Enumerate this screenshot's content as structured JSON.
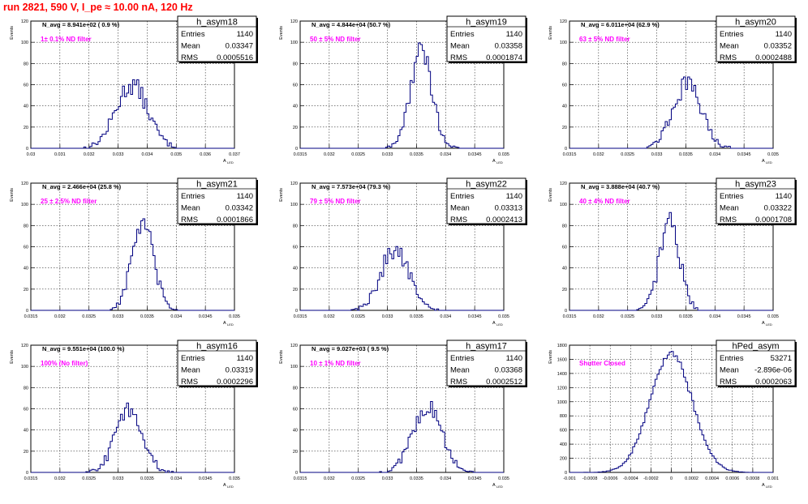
{
  "page": {
    "title": "run 2821,   590 V, I_pe ≈ 10.00 nA, 120 Hz"
  },
  "colors": {
    "title": "#ff0000",
    "histogram": "#000080",
    "annotation": "#ff00ff"
  },
  "chart_data": [
    {
      "type": "bar",
      "name": "h_asym18",
      "ylabel": "Events",
      "xlabel": "A",
      "xlim": [
        0.03,
        0.037
      ],
      "ylim": [
        0,
        120
      ],
      "xticks": [
        "0.03",
        "0.031",
        "0.032",
        "0.033",
        "0.034",
        "0.035",
        "0.036",
        "0.037"
      ],
      "yticks": [
        "0",
        "20",
        "40",
        "60",
        "80",
        "100",
        "120"
      ],
      "grid": true,
      "legend": "top-right",
      "stats": {
        "entries_label": "Entries",
        "entries": "1140",
        "mean_label": "Mean",
        "mean": "0.03347",
        "rms_label": "RMS",
        "rms": "0.0005516"
      },
      "navg": "N_avg = 8.941e+02 ( 0.9 %)",
      "annotation": "1± 0.1% ND filter",
      "hist_mean": 0.03347,
      "hist_sigma": 0.00055,
      "peak": 60,
      "peak_count": 65
    },
    {
      "type": "bar",
      "name": "h_asym19",
      "ylabel": "Events",
      "xlabel": "A",
      "xlim": [
        0.0315,
        0.035
      ],
      "ylim": [
        0,
        120
      ],
      "xticks": [
        "0.0315",
        "0.032",
        "0.0325",
        "0.033",
        "0.0335",
        "0.034",
        "0.0345",
        "0.035"
      ],
      "yticks": [
        "0",
        "20",
        "40",
        "60",
        "80",
        "100",
        "120"
      ],
      "grid": true,
      "legend": "top-right",
      "stats": {
        "entries_label": "Entries",
        "entries": "1140",
        "mean_label": "Mean",
        "mean": "0.03358",
        "rms_label": "RMS",
        "rms": "0.0001874"
      },
      "navg": "N_avg = 4.844e+04 (50.7 %)",
      "annotation": "50 ± 5% ND filter",
      "hist_mean": 0.03358,
      "hist_sigma": 0.000187,
      "peak": 92,
      "peak_count": 96
    },
    {
      "type": "bar",
      "name": "h_asym20",
      "ylabel": "Events",
      "xlabel": "A",
      "xlim": [
        0.0315,
        0.035
      ],
      "ylim": [
        0,
        120
      ],
      "xticks": [
        "0.0315",
        "0.032",
        "0.0325",
        "0.033",
        "0.0335",
        "0.034",
        "0.0345",
        "0.035"
      ],
      "yticks": [
        "0",
        "20",
        "40",
        "60",
        "80",
        "100",
        "120"
      ],
      "grid": true,
      "legend": "top-right",
      "stats": {
        "entries_label": "Entries",
        "entries": "1140",
        "mean_label": "Mean",
        "mean": "0.03352",
        "rms_label": "RMS",
        "rms": "0.0002488"
      },
      "navg": "N_avg = 6.011e+04 (62.9 %)",
      "annotation": "63 ± 5% ND filter",
      "hist_mean": 0.03352,
      "hist_sigma": 0.000249,
      "peak": 60,
      "peak_count": 68
    },
    {
      "type": "bar",
      "name": "h_asym21",
      "ylabel": "Events",
      "xlabel": "A",
      "xlim": [
        0.0315,
        0.035
      ],
      "ylim": [
        0,
        120
      ],
      "xticks": [
        "0.0315",
        "0.032",
        "0.0325",
        "0.033",
        "0.0335",
        "0.034",
        "0.0345",
        "0.035"
      ],
      "yticks": [
        "0",
        "20",
        "40",
        "60",
        "80",
        "100",
        "120"
      ],
      "grid": true,
      "legend": "top-right",
      "stats": {
        "entries_label": "Entries",
        "entries": "1140",
        "mean_label": "Mean",
        "mean": "0.03342",
        "rms_label": "RMS",
        "rms": "0.0001866"
      },
      "navg": "N_avg = 2.466e+04 (25.8 %)",
      "annotation": "25 ± 2.5% ND filter",
      "hist_mean": 0.03342,
      "hist_sigma": 0.000187,
      "peak": 82,
      "peak_count": 90
    },
    {
      "type": "bar",
      "name": "h_asym22",
      "ylabel": "Events",
      "xlabel": "A",
      "xlim": [
        0.0315,
        0.035
      ],
      "ylim": [
        0,
        120
      ],
      "xticks": [
        "0.0315",
        "0.032",
        "0.0325",
        "0.033",
        "0.0335",
        "0.034",
        "0.0345",
        "0.035"
      ],
      "yticks": [
        "0",
        "20",
        "40",
        "60",
        "80",
        "100",
        "120"
      ],
      "grid": true,
      "legend": "top-right",
      "stats": {
        "entries_label": "Entries",
        "entries": "1140",
        "mean_label": "Mean",
        "mean": "0.03313",
        "rms_label": "RMS",
        "rms": "0.0002413"
      },
      "navg": "N_avg = 7.573e+04 (79.3 %)",
      "annotation": "79 ± 5% ND filter",
      "hist_mean": 0.03313,
      "hist_sigma": 0.000241,
      "peak": 58,
      "peak_count": 63
    },
    {
      "type": "bar",
      "name": "h_asym23",
      "ylabel": "Events",
      "xlabel": "A",
      "xlim": [
        0.0315,
        0.035
      ],
      "ylim": [
        0,
        120
      ],
      "xticks": [
        "0.0315",
        "0.032",
        "0.0325",
        "0.033",
        "0.0335",
        "0.034",
        "0.0345",
        "0.035"
      ],
      "yticks": [
        "0",
        "20",
        "40",
        "60",
        "80",
        "100",
        "120"
      ],
      "grid": true,
      "legend": "top-right",
      "stats": {
        "entries_label": "Entries",
        "entries": "1140",
        "mean_label": "Mean",
        "mean": "0.03322",
        "rms_label": "RMS",
        "rms": "0.0001708"
      },
      "navg": "N_avg = 3.888e+04 (40.7 %)",
      "annotation": "40 ± 4% ND filter",
      "hist_mean": 0.03322,
      "hist_sigma": 0.000171,
      "peak": 85,
      "peak_count": 95
    },
    {
      "type": "bar",
      "name": "h_asym16",
      "ylabel": "Events",
      "xlabel": "A",
      "xlim": [
        0.0315,
        0.035
      ],
      "ylim": [
        0,
        120
      ],
      "xticks": [
        "0.0315",
        "0.032",
        "0.0325",
        "0.033",
        "0.0335",
        "0.034",
        "0.0345",
        "0.035"
      ],
      "yticks": [
        "0",
        "20",
        "40",
        "60",
        "80",
        "100",
        "120"
      ],
      "grid": true,
      "legend": "top-right",
      "stats": {
        "entries_label": "Entries",
        "entries": "1140",
        "mean_label": "Mean",
        "mean": "0.03319",
        "rms_label": "RMS",
        "rms": "0.0002296"
      },
      "navg": "N_avg = 9.551e+04 (100.0 %)",
      "annotation": "100% (No filter)",
      "hist_mean": 0.03319,
      "hist_sigma": 0.00023,
      "peak": 60,
      "peak_count": 63
    },
    {
      "type": "bar",
      "name": "h_asym17",
      "ylabel": "Events",
      "xlabel": "A",
      "xlim": [
        0.0315,
        0.035
      ],
      "ylim": [
        0,
        120
      ],
      "xticks": [
        "0.0315",
        "0.032",
        "0.0325",
        "0.033",
        "0.0335",
        "0.034",
        "0.0345",
        "0.035"
      ],
      "yticks": [
        "0",
        "20",
        "40",
        "60",
        "80",
        "100",
        "120"
      ],
      "grid": true,
      "legend": "top-right",
      "stats": {
        "entries_label": "Entries",
        "entries": "1140",
        "mean_label": "Mean",
        "mean": "0.03368",
        "rms_label": "RMS",
        "rms": "0.0002512"
      },
      "navg": "N_avg = 9.027e+03 ( 9.5 %)",
      "annotation": "10 ± 1% ND filter",
      "hist_mean": 0.03368,
      "hist_sigma": 0.000251,
      "peak": 62,
      "peak_count": 70
    },
    {
      "type": "bar",
      "name": "hPed_asym",
      "ylabel": "Events",
      "xlabel": "A",
      "xlim": [
        -0.001,
        0.001
      ],
      "ylim": [
        0,
        1900
      ],
      "xticks": [
        "-0.001",
        "-0.0008",
        "-0.0006",
        "-0.0004",
        "-0.0002",
        "0",
        "0.0002",
        "0.0004",
        "0.0006",
        "0.0008",
        "0.001"
      ],
      "yticks": [
        "0",
        "200",
        "400",
        "600",
        "800",
        "1000",
        "1200",
        "1400",
        "1600",
        "1800"
      ],
      "grid": true,
      "legend": "top-right",
      "stats": {
        "entries_label": "Entries",
        "entries": "53271",
        "mean_label": "Mean",
        "mean": "-2.896e-06",
        "rms_label": "RMS",
        "rms": "0.0002063"
      },
      "navg": "",
      "annotation": "Shutter Closed",
      "hist_mean": -2.9e-06,
      "hist_sigma": 0.000206,
      "peak": 1780,
      "peak_count": 1820
    }
  ]
}
